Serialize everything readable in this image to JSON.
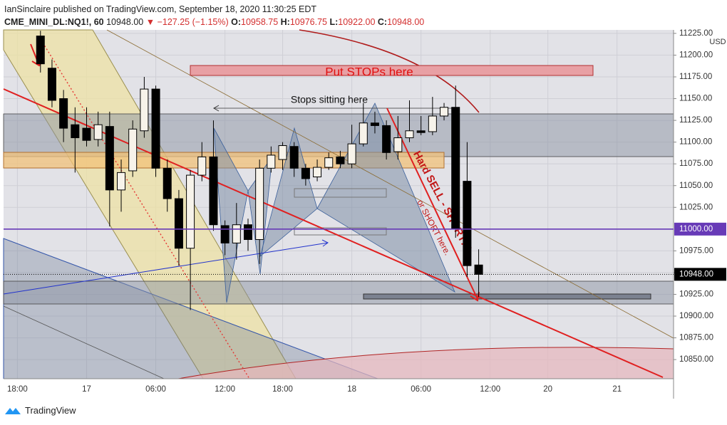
{
  "header": {
    "publisher": "IanSinclaire published on TradingView.com, September 18, 2020 11:30:25 EDT",
    "symbol": "CME_MINI_DL:NQ1!, 60",
    "last": "10948.00",
    "change": "▼ −127.25 (−1.15%)",
    "ohlc": [
      {
        "key": "O:",
        "value": "10958.75"
      },
      {
        "key": "H:",
        "value": "10976.75"
      },
      {
        "key": "L:",
        "value": "10922.00"
      },
      {
        "key": "C:",
        "value": "10948.00"
      }
    ]
  },
  "chart_data": {
    "type": "candlestick",
    "currency": "USD",
    "x": [
      2,
      3,
      4,
      5,
      6,
      7,
      8,
      9,
      10,
      11,
      12,
      13,
      14,
      15,
      16,
      17,
      18,
      19,
      20,
      21,
      22,
      23,
      24,
      25,
      26,
      27,
      28,
      29,
      30,
      31,
      32,
      33,
      34,
      35,
      36,
      37,
      38,
      39,
      40
    ],
    "open": [
      11222,
      11185,
      11150,
      11120,
      11116,
      11103,
      11118,
      11045,
      11067,
      11113,
      11161,
      11070,
      11035,
      10978,
      11062,
      11083,
      11004,
      10984,
      11005,
      10988,
      11070,
      11080,
      11095,
      11070,
      11060,
      11071,
      11083,
      11075,
      11098,
      11122,
      11119,
      11089,
      11105,
      11113,
      11112,
      11130,
      11140,
      11055,
      10958.75
    ],
    "high": [
      11228,
      11195,
      11160,
      11140,
      11140,
      11135,
      11135,
      11080,
      11125,
      11175,
      11165,
      11080,
      11045,
      11068,
      11100,
      11125,
      11010,
      11030,
      11012,
      11080,
      11095,
      11100,
      11100,
      11075,
      11080,
      11088,
      11090,
      11120,
      11145,
      11135,
      11125,
      11130,
      11148,
      11130,
      11152,
      11145,
      11165,
      11100,
      10976.75
    ],
    "low": [
      11180,
      11140,
      11100,
      11065,
      11095,
      11095,
      11003,
      11020,
      11060,
      11105,
      11060,
      11020,
      10958,
      10907,
      11055,
      10998,
      10970,
      10965,
      10975,
      10960,
      11065,
      11068,
      11060,
      11050,
      11055,
      11068,
      11070,
      11070,
      11095,
      11110,
      11080,
      11080,
      11100,
      11108,
      11108,
      11125,
      10990,
      10945,
      10922
    ],
    "close": [
      11190,
      11148,
      11116,
      11105,
      11102,
      11120,
      11045,
      11065,
      11115,
      11161,
      11070,
      11035,
      10978,
      11062,
      11083,
      11005,
      10984,
      11005,
      10988,
      11070,
      11085,
      11096,
      11070,
      11058,
      11071,
      11082,
      11075,
      11098,
      11122,
      11119,
      11088,
      11105,
      11113,
      11111,
      11130,
      11140,
      11001,
      10958,
      10948
    ],
    "up_color": "#f7f3ea",
    "down_color": "#000000",
    "xlim": [
      -1.2,
      56.9
    ],
    "xticks": [
      {
        "value": 0,
        "label": "18:00"
      },
      {
        "value": 6,
        "label": "17"
      },
      {
        "value": 12,
        "label": "06:00"
      },
      {
        "value": 18,
        "label": "12:00"
      },
      {
        "value": 23,
        "label": "18:00"
      },
      {
        "value": 29,
        "label": "18"
      },
      {
        "value": 35,
        "label": "06:00"
      },
      {
        "value": 41,
        "label": "12:00"
      },
      {
        "value": 46,
        "label": "20"
      },
      {
        "value": 52,
        "label": "21"
      }
    ],
    "ylim": [
      10828,
      11229
    ],
    "yticks": [
      {
        "value": 10850,
        "label": "10850.00"
      },
      {
        "value": 10875,
        "label": "10875.00"
      },
      {
        "value": 10900,
        "label": "10900.00"
      },
      {
        "value": 10925,
        "label": "10925.00"
      },
      {
        "value": 10950,
        "label": "10950.00"
      },
      {
        "value": 10975,
        "label": "10975.00"
      },
      {
        "value": 11025,
        "label": "11025.00"
      },
      {
        "value": 11050,
        "label": "11050.00"
      },
      {
        "value": 11075,
        "label": "11075.00"
      },
      {
        "value": 11100,
        "label": "11100.00"
      },
      {
        "value": 11125,
        "label": "11125.00"
      },
      {
        "value": 11150,
        "label": "11150.00"
      },
      {
        "value": 11175,
        "label": "11175.00"
      },
      {
        "value": 11200,
        "label": "11200.00"
      },
      {
        "value": 11225,
        "label": "11225.00"
      }
    ],
    "price_lines": [
      {
        "value": 11000,
        "label": "11000.00",
        "color": "#673ab7"
      },
      {
        "value": 10948,
        "label": "10948.00",
        "color": "#000000"
      }
    ],
    "annotations": {
      "put_stops": "Put STOPs here",
      "stops_sitting": "Stops sitting here",
      "hard_sell": "Hard SELL - SHORT!!!",
      "or_short": "or SHORT here."
    }
  },
  "footer": {
    "brand": "TradingView"
  }
}
